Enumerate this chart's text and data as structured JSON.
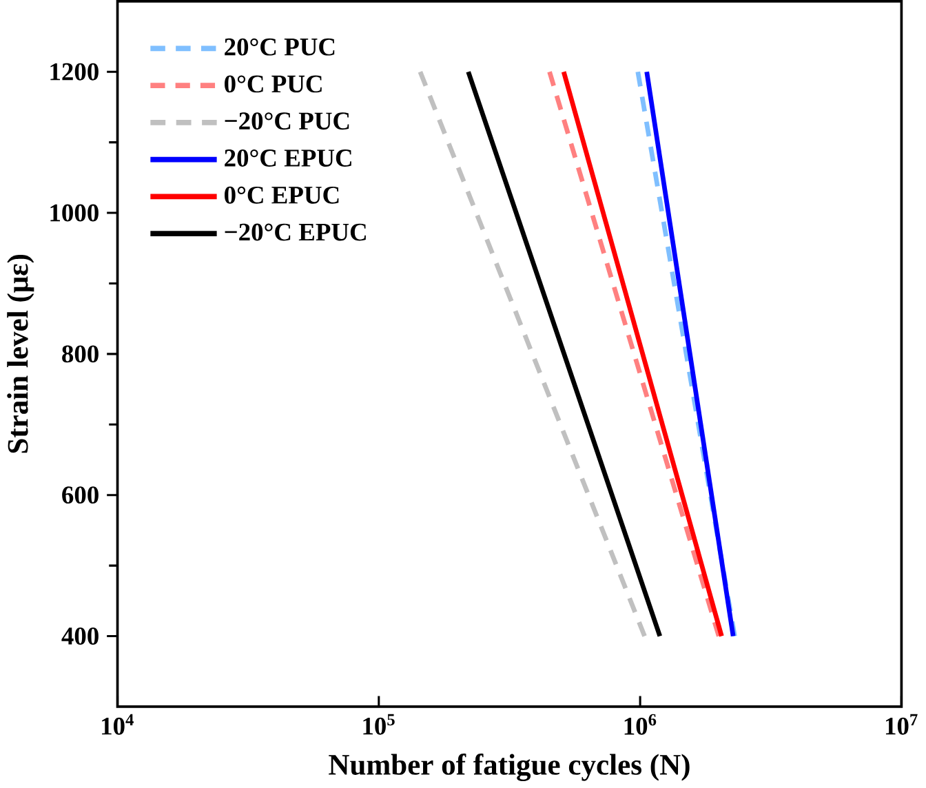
{
  "chart_data": {
    "type": "line",
    "xlabel": "Number of fatigue cycles (N)",
    "ylabel": "Strain level (με)",
    "log": "x",
    "xlim": [
      10000,
      10000000
    ],
    "ylim": [
      300,
      1300
    ],
    "xticks": [
      {
        "value": 10000,
        "label": "10$^{4}$"
      },
      {
        "value": 100000,
        "label": "10$^{5}$"
      },
      {
        "value": 1000000,
        "label": "10$^{6}$"
      },
      {
        "value": 10000000,
        "label": "10$^{7}$"
      }
    ],
    "yticks": [
      400,
      600,
      800,
      1000,
      1200
    ],
    "grid": false,
    "legend": "top left",
    "marker": "none",
    "series": [
      {
        "name": "20°C PUC",
        "color": "#7fbfff",
        "line_style": "dashed",
        "x": [
          980000,
          2300000
        ],
        "values": [
          1200,
          400
        ]
      },
      {
        "name": "0°C  PUC",
        "color": "#ff8080",
        "line_style": "dashed",
        "x": [
          450000,
          2000000
        ],
        "values": [
          1200,
          400
        ]
      },
      {
        "name": "−20°C PUC",
        "color": "#c0c0c0",
        "line_style": "dashed",
        "x": [
          144000,
          1040000
        ],
        "values": [
          1200,
          400
        ]
      },
      {
        "name": "20°C EPUC",
        "color": "#0000ff",
        "line_style": "solid",
        "x": [
          1060000,
          2270000
        ],
        "values": [
          1200,
          400
        ]
      },
      {
        "name": "0°C  EPUC",
        "color": "#ff0000",
        "line_style": "solid",
        "x": [
          510000,
          2050000
        ],
        "values": [
          1200,
          400
        ]
      },
      {
        "name": "−20°C EPUC",
        "color": "#000000",
        "line_style": "solid",
        "x": [
          220000,
          1190000
        ],
        "values": [
          1200,
          400
        ]
      }
    ]
  }
}
